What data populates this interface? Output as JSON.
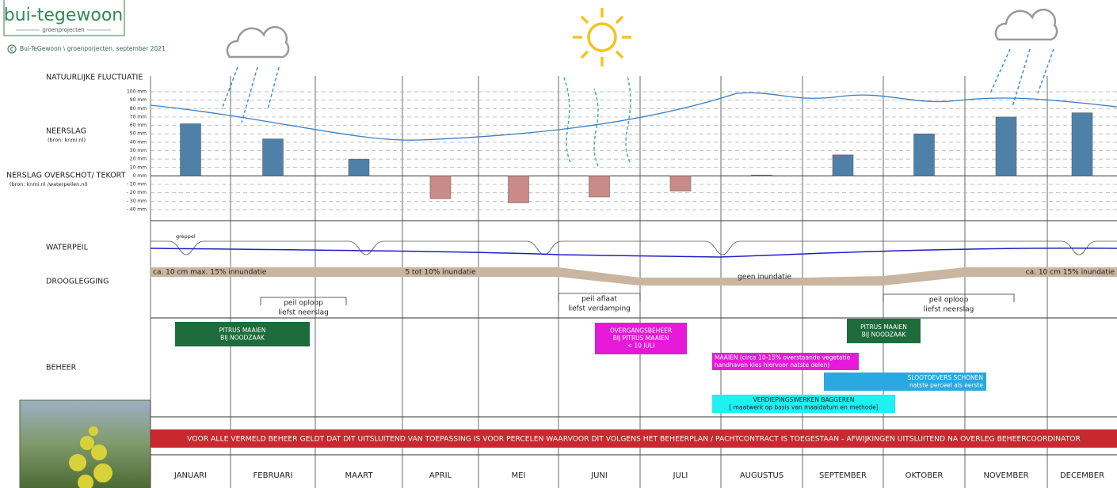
{
  "header": {
    "logo": "bui-tegewoon",
    "logo_sub": "groenprojecten",
    "copyright": "Bui-TeGewoon \\ groenporjecten, september 2021"
  },
  "row_labels": {
    "fluctuation": "NATUURLIJKE FLUCTUATIE",
    "precipitation": "NEERSLAG",
    "precipitation_source": "(bron: knmi.nl)",
    "surplus": "NERSLAG OVERSCHOT/ TEKORT",
    "surplus_source": "(bron: knmi.nl /waterpeilen.nl)",
    "water_level": "WATERPEIL",
    "ditch": "greppel",
    "drainage": "DROOGLEGGING",
    "management": "BEHEER"
  },
  "months": [
    "JANUARI",
    "FEBRUARI",
    "MAART",
    "APRIL",
    "MEI",
    "JUNI",
    "JULI",
    "AUGUSTUS",
    "SEPTEMBER",
    "OKTOBER",
    "NOVEMBER",
    "DECEMBER"
  ],
  "precipitation": {
    "type": "bar",
    "values": [
      62,
      44,
      20,
      -27,
      -32,
      -25,
      -18,
      1,
      25,
      50,
      70,
      75
    ],
    "color": "#4f81a8",
    "negative_color": "#c98b87",
    "ylim": [
      -40,
      100
    ],
    "yticks": [
      {
        "value": 100,
        "label": "100 mm"
      },
      {
        "value": 90,
        "label": "90 mm"
      },
      {
        "value": 80,
        "label": "80 mm"
      },
      {
        "value": 70,
        "label": "70 mm"
      },
      {
        "value": 60,
        "label": "60 mm"
      },
      {
        "value": 50,
        "label": "50 mm"
      },
      {
        "value": 40,
        "label": "40 mm"
      },
      {
        "value": 30,
        "label": "30 mm"
      },
      {
        "value": 20,
        "label": "20 mm"
      },
      {
        "value": 10,
        "label": "10 mm"
      },
      {
        "value": 0,
        "label": "0 mm"
      },
      {
        "value": -10,
        "label": "- 10 mm"
      },
      {
        "value": -20,
        "label": "- 20 mm"
      },
      {
        "value": -30,
        "label": "- 30 mm"
      },
      {
        "value": -40,
        "label": "- 40 mm"
      }
    ],
    "grid": true
  },
  "drainage": [
    "ca. 10 cm  max. 15%  innundatie",
    "5 tot 10% inundatie",
    "geen inundatie",
    "ca. 10 cm 15% inundatie"
  ],
  "levels": [
    {
      "lines": [
        "peil oploop",
        "liefst neerslag"
      ]
    },
    {
      "lines": [
        "peil aflaat",
        "liefst verdamping"
      ]
    },
    {
      "lines": [
        "peil oploop",
        "liefst neerslag"
      ]
    }
  ],
  "management": [
    {
      "lines": [
        "PITRUS MAAIEN",
        "BIJ NOODZAAK"
      ],
      "color": "#1e6b3c"
    },
    {
      "lines": [
        "OVERGANGSBEHEER",
        "BIJ PITRUS MAAIEN",
        "< 10 JULI"
      ],
      "color": "#e619d8"
    },
    {
      "lines": [
        "MAAIEN  (circa 10-15% overstaande vegetatie",
        "handhaven kies hiervoor natste delen)"
      ],
      "color": "#e619d8"
    },
    {
      "lines": [
        "PITRUS MAAIEN",
        "BIJ NOODZAAK"
      ],
      "color": "#1e6b3c"
    },
    {
      "lines": [
        "SLOOTOEVERS SCHONEN",
        "natste perceel als eerste"
      ],
      "color": "#2aa8e0"
    },
    {
      "lines": [
        "VERDIEPINGSWERKEN BAGGEREN",
        "[ maatwerk op basis van maaidatum en methode]"
      ],
      "color": "#1ff0f0"
    }
  ],
  "notice": "VOOR ALLE VERMELD BEHEER GELDT  DAT DIT UITSLUITEND VAN TOEPASSING IS VOOR PERCELEN WAARVOOR DIT VOLGENS HET BEHEERPLAN / PACHTCONTRACT IS TOEGESTAAN  -  AFWIJKINGEN UITSLUITEND NA OVERLEG BEHEERCOORDINATOR"
}
